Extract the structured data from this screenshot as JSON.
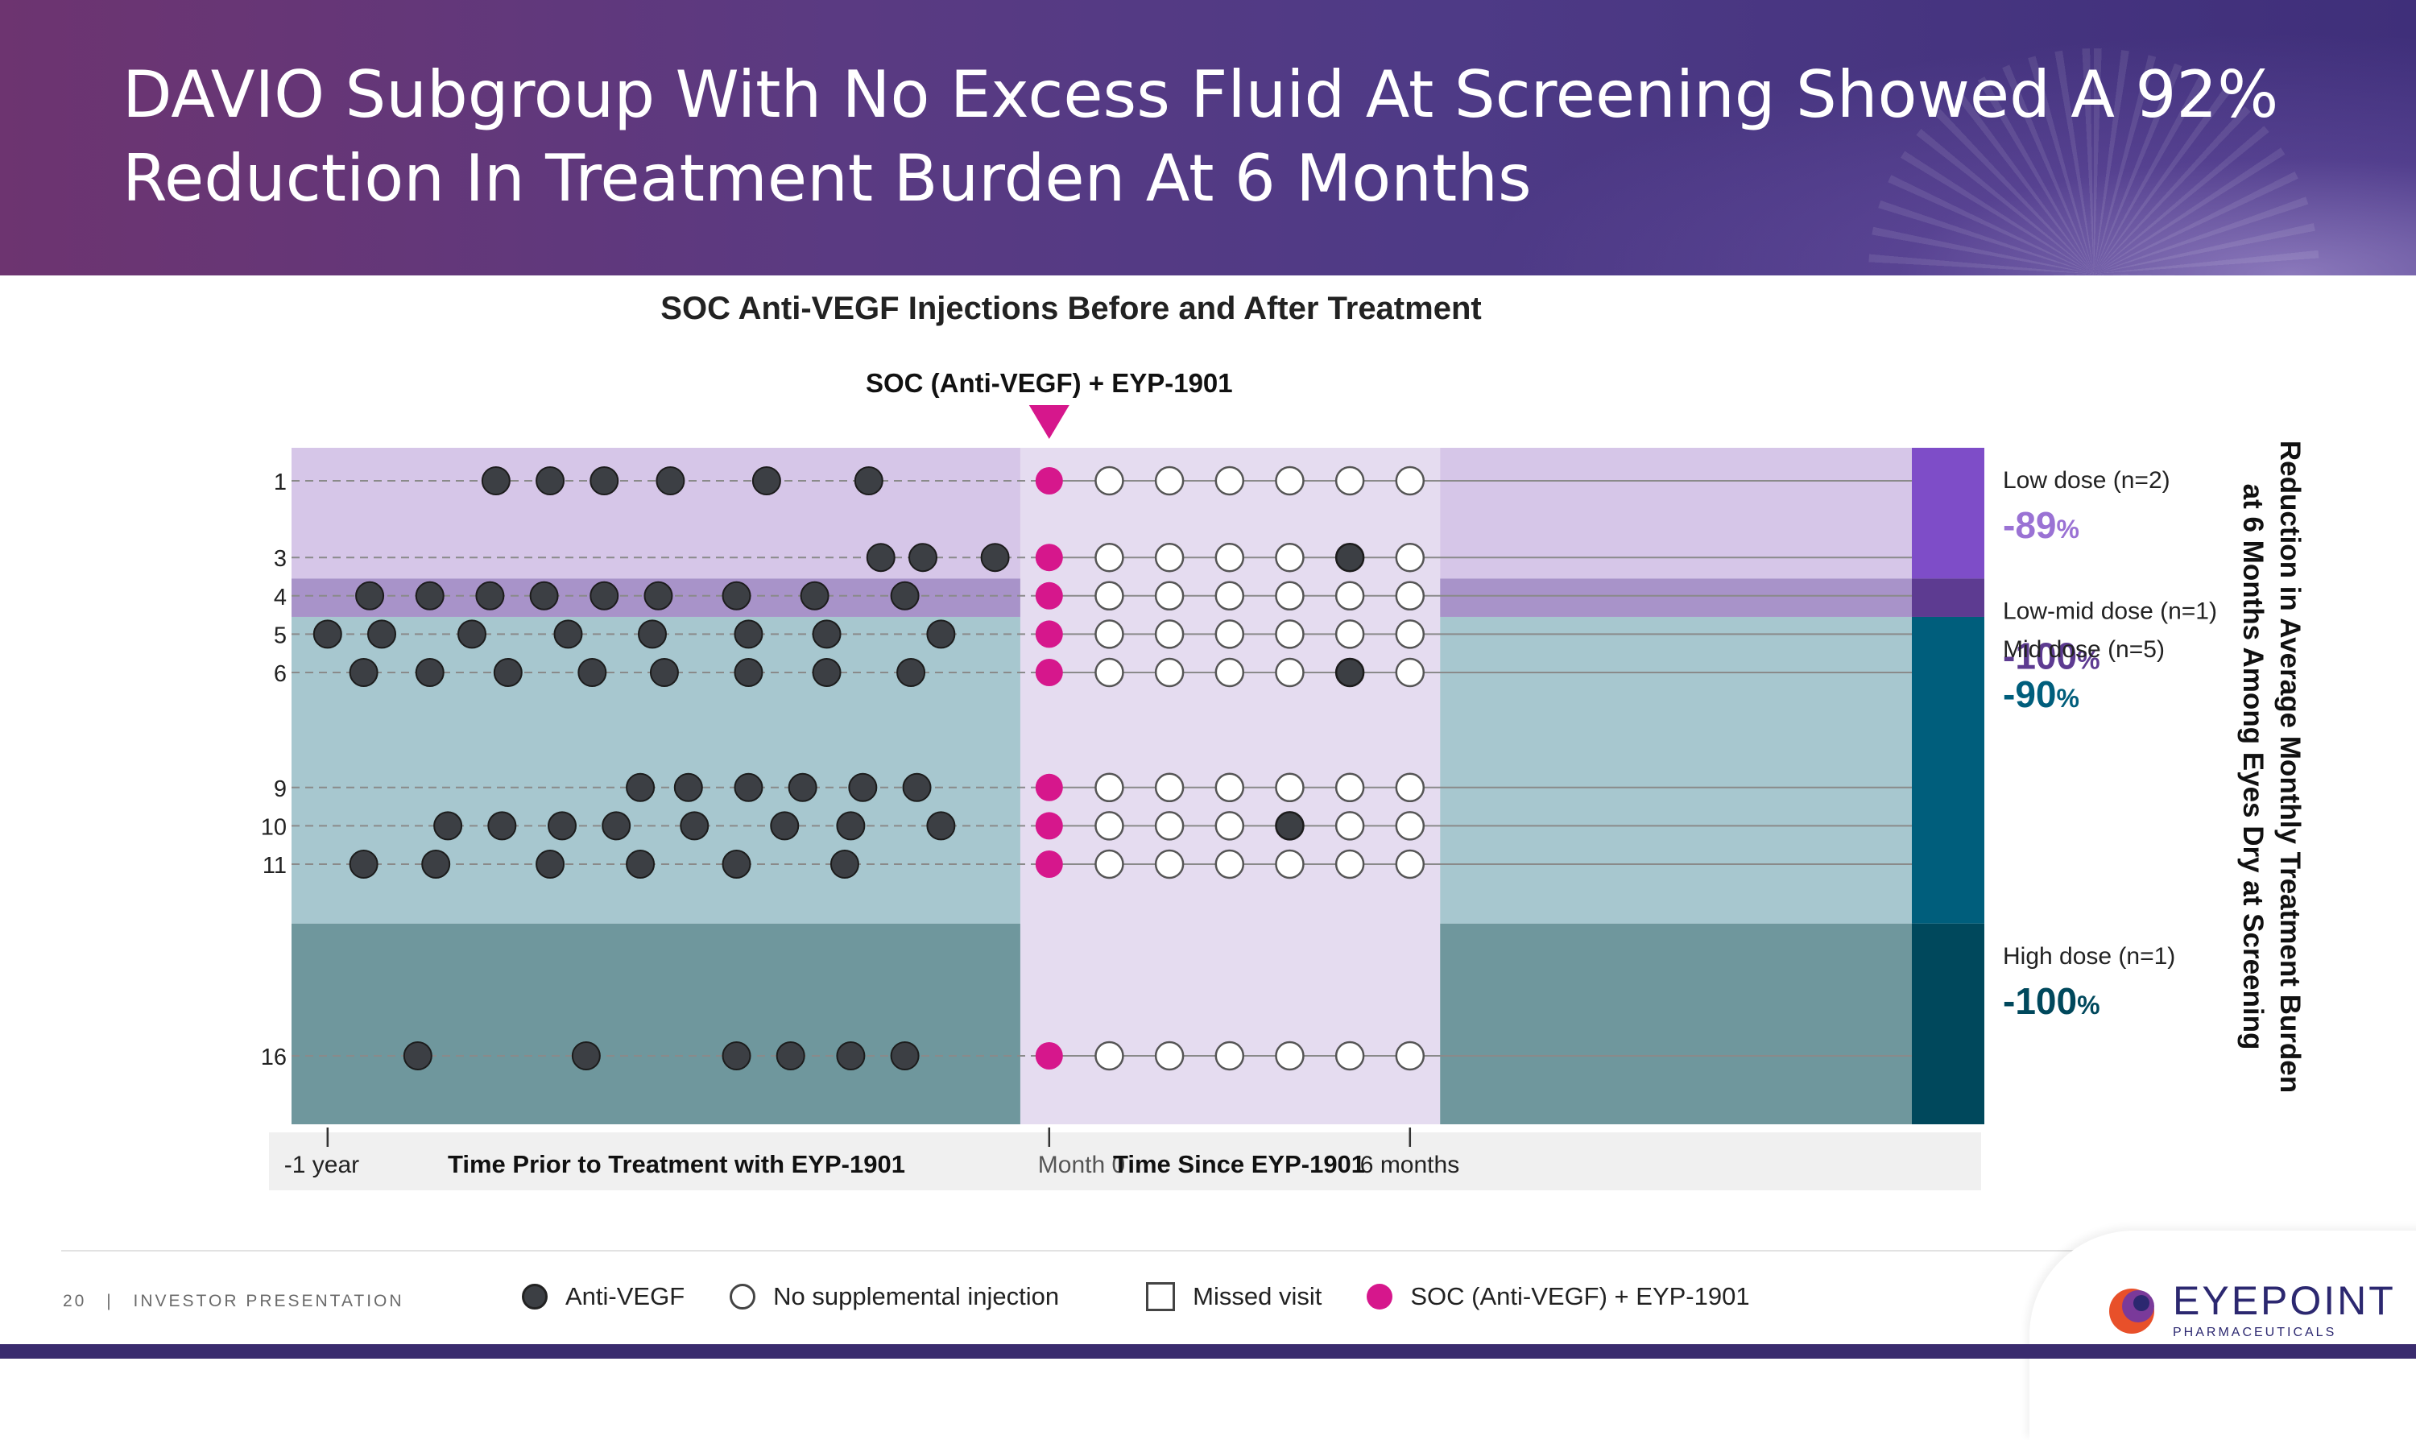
{
  "header": {
    "title": "DAVIO Subgroup With No Excess Fluid At Screening Showed A 92%\nReduction In Treatment Burden At 6 Months"
  },
  "chart_data": {
    "type": "scatter",
    "title": "SOC Anti-VEGF Injections Before and After Treatment",
    "treatment_label": "SOC (Anti-VEGF) + EYP-1901",
    "x_label_before": "Time Prior to Treatment with EYP-1901",
    "x_label_after": "Time Since EYP-1901",
    "x_ticks": [
      {
        "x": -12,
        "label": "-1 year"
      },
      {
        "x": 0,
        "label": "Month 0"
      },
      {
        "x": 6,
        "label": "6 months"
      }
    ],
    "xlim": [
      -12.6,
      14.4
    ],
    "y_labels": [
      "1",
      "3",
      "4",
      "5",
      "6",
      "9",
      "10",
      "11",
      "16"
    ],
    "subject_rows": {
      "1": 1,
      "3": 3,
      "4": 4,
      "5": 5,
      "6": 6,
      "9": 9,
      "10": 10,
      "11": 11,
      "16": 16
    },
    "dose_groups": [
      {
        "name": "Low dose (n=2)",
        "reduction": "-89",
        "pct": "%",
        "y_from": 0.15,
        "y_to": 3.55,
        "color": "#d6c6e8",
        "bar_color": "#7e4dc8",
        "label_color": "#9a72d4"
      },
      {
        "name": "Low-mid dose (n=1)",
        "reduction": "-100",
        "pct": "%",
        "y_from": 3.55,
        "y_to": 4.55,
        "color": "#a893c9",
        "bar_color": "#5d3b91",
        "label_color": "#5d3b91"
      },
      {
        "name": "Mid dose (n=5)",
        "reduction": "-90",
        "pct": "%",
        "y_from": 4.55,
        "y_to": 12.55,
        "color": "#a7c7cf",
        "bar_color": "#005e7c",
        "label_color": "#005e7c"
      },
      {
        "name": "High dose (n=1)",
        "reduction": "-100",
        "pct": "%",
        "y_from": 12.55,
        "y_to": 17.85,
        "color": "#6f979d",
        "bar_color": "#00485c",
        "label_color": "#00485c"
      }
    ],
    "right_axis_label": "Reduction in Average Monthly Treatment Burden\nat 6 Months Among Eyes Dry at Screening",
    "anti_vegf_before": [
      {
        "subject": 1,
        "months": [
          -9.2,
          -8.3,
          -7.4,
          -6.3,
          -4.7,
          -3.0
        ]
      },
      {
        "subject": 3,
        "months": [
          -2.8,
          -2.1,
          -0.9
        ]
      },
      {
        "subject": 4,
        "months": [
          -11.3,
          -10.3,
          -9.3,
          -8.4,
          -7.4,
          -6.5,
          -5.2,
          -3.9,
          -2.4
        ]
      },
      {
        "subject": 5,
        "months": [
          -12.0,
          -11.1,
          -9.6,
          -8.0,
          -6.6,
          -5.0,
          -3.7,
          -1.8
        ]
      },
      {
        "subject": 6,
        "months": [
          -11.4,
          -10.3,
          -9.0,
          -7.6,
          -6.4,
          -5.0,
          -3.7,
          -2.3
        ]
      },
      {
        "subject": 9,
        "months": [
          -6.8,
          -6.0,
          -5.0,
          -4.1,
          -3.1,
          -2.2
        ]
      },
      {
        "subject": 10,
        "months": [
          -10.0,
          -9.1,
          -8.1,
          -7.2,
          -5.9,
          -4.4,
          -3.3,
          -1.8
        ]
      },
      {
        "subject": 11,
        "months": [
          -11.4,
          -10.2,
          -8.3,
          -6.8,
          -5.2,
          -3.4
        ]
      },
      {
        "subject": 16,
        "months": [
          -10.5,
          -7.7,
          -5.2,
          -4.3,
          -3.3,
          -2.4
        ]
      }
    ],
    "after_visits_months": [
      1,
      2,
      3,
      4,
      5,
      6
    ],
    "anti_vegf_after": [
      {
        "subject": 3,
        "months": [
          5
        ]
      },
      {
        "subject": 6,
        "months": [
          5
        ]
      },
      {
        "subject": 10,
        "months": [
          4
        ]
      }
    ],
    "treatment_month": 0,
    "legend": [
      {
        "label": "Anti-VEGF",
        "symbol": "dark-circle"
      },
      {
        "label": "No supplemental injection",
        "symbol": "empty-circle"
      },
      {
        "label": "Missed visit",
        "symbol": "square"
      },
      {
        "label": "SOC (Anti-VEGF) + EYP-1901",
        "symbol": "pink-circle"
      }
    ],
    "colors": {
      "anti_vegf": "#3c3f44",
      "treatment": "#d6178c",
      "after_band": "#e5dcf0",
      "axis_band": "#f0f0f0"
    }
  },
  "footer": {
    "page_number": "20",
    "separator": "|",
    "label": "INVESTOR PRESENTATION"
  },
  "logo": {
    "name": "EYEPOINT",
    "sub": "PHARMACEUTICALS"
  }
}
